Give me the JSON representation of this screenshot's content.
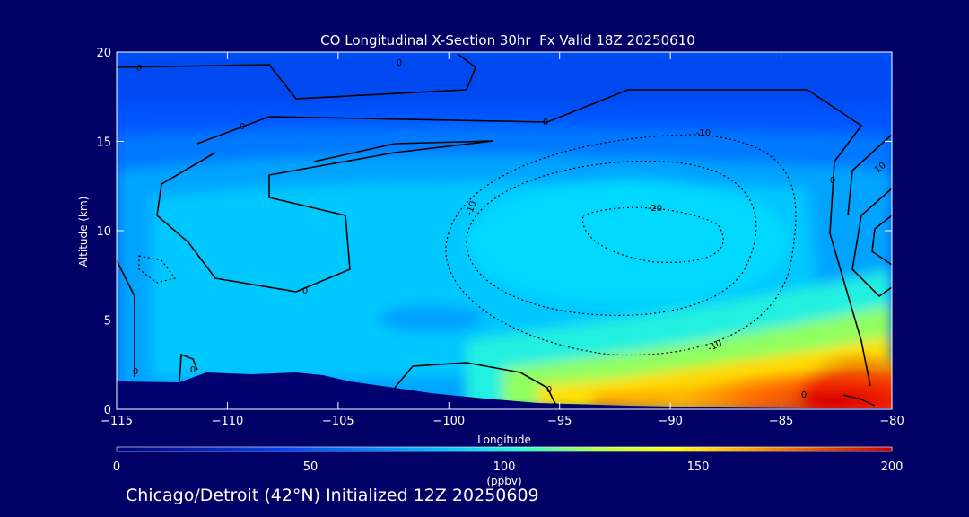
{
  "chart_data": {
    "type": "heatmap",
    "title": "CO Longitudinal X-Section 30hr  Fx Valid 18Z 20250610",
    "xlabel": "Longitude",
    "ylabel": "Altitude (km)",
    "xlim": [
      -115,
      -80
    ],
    "ylim": [
      0,
      20
    ],
    "xticks": [
      "-115",
      "-110",
      "-105",
      "-100",
      "-95",
      "-90",
      "-85",
      "-80"
    ],
    "yticks": [
      "0",
      "5",
      "10",
      "15",
      "20"
    ],
    "colorbar": {
      "label": "(ppbv)",
      "range": [
        0,
        200
      ],
      "ticks": [
        "0",
        "50",
        "100",
        "150",
        "200"
      ]
    },
    "field_description": "CO concentration, ppbv",
    "contour_labels": [
      "0",
      "0",
      "0",
      "0",
      "0",
      "0",
      "0",
      "0",
      "0",
      "0",
      "-10",
      "-10",
      "-10",
      "-20",
      "10"
    ],
    "grid": false
  },
  "caption": "Chicago/Detroit (42°N) Initialized 12Z 20250609"
}
